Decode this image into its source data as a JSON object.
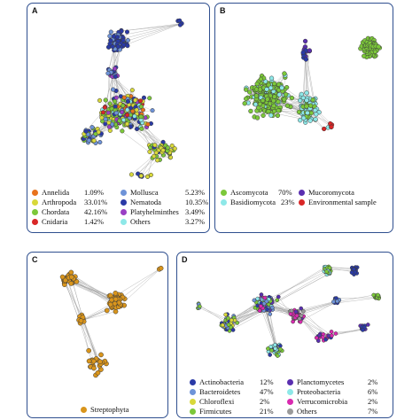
{
  "panels": {
    "A": {
      "label": "A",
      "legend": [
        {
          "name": "Annelida",
          "pct": "1.09%",
          "color": "#e8731d"
        },
        {
          "name": "Arthropoda",
          "pct": "33.01%",
          "color": "#d8d83a"
        },
        {
          "name": "Chordata",
          "pct": "42.16%",
          "color": "#7cc83a"
        },
        {
          "name": "Cnidaria",
          "pct": "1.42%",
          "color": "#d92727"
        },
        {
          "name": "Mollusca",
          "pct": "5.23%",
          "color": "#6e93d8"
        },
        {
          "name": "Nematoda",
          "pct": "10.35%",
          "color": "#2a3aa6"
        },
        {
          "name": "Platyhelminthes",
          "pct": "3.49%",
          "color": "#9a3fc4"
        },
        {
          "name": "Others",
          "pct": "3.27%",
          "color": "#8ee8e8"
        }
      ]
    },
    "B": {
      "label": "B",
      "legend": [
        {
          "name": "Ascomycota",
          "pct": "70%",
          "color": "#7cc83a"
        },
        {
          "name": "Basidiomycota",
          "pct": "23%",
          "color": "#8ee8e8"
        },
        {
          "name": "Mucoromycota",
          "pct": "",
          "color": "#5a2fb0"
        },
        {
          "name": "Environmental sample",
          "pct": "",
          "color": "#d92727"
        }
      ]
    },
    "C": {
      "label": "C",
      "legend": [
        {
          "name": "Streptophyta",
          "pct": "",
          "color": "#d9951c"
        }
      ]
    },
    "D": {
      "label": "D",
      "legend": [
        {
          "name": "Actinobacteria",
          "pct": "12%",
          "color": "#2a3aa6"
        },
        {
          "name": "Bacteroidetes",
          "pct": "47%",
          "color": "#6e93d8"
        },
        {
          "name": "Chloroflexi",
          "pct": "2%",
          "color": "#d8d83a"
        },
        {
          "name": "Firmicutes",
          "pct": "21%",
          "color": "#7cc83a"
        },
        {
          "name": "Planctomycetes",
          "pct": "2%",
          "color": "#5a2fb0"
        },
        {
          "name": "Proteobacteria",
          "pct": "6%",
          "color": "#8ee8e8"
        },
        {
          "name": "Verrucomicrobia",
          "pct": "2%",
          "color": "#d92ab0"
        },
        {
          "name": "Others",
          "pct": "7%",
          "color": "#9a9a9a"
        }
      ]
    }
  }
}
